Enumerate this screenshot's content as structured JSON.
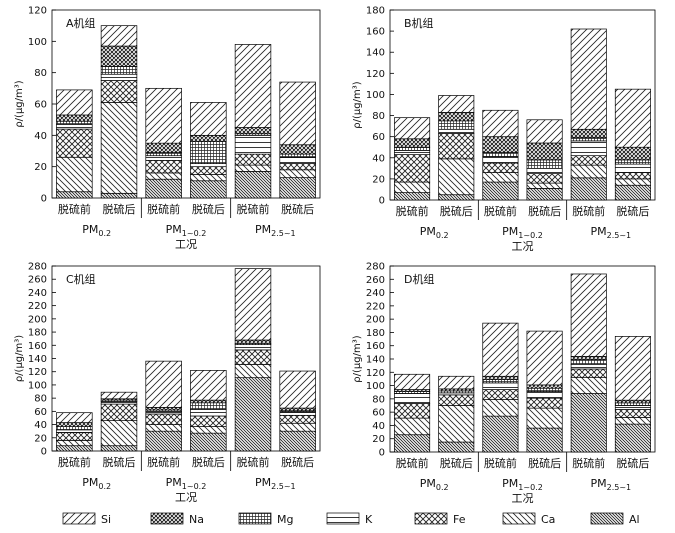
{
  "components": [
    "Si",
    "Na",
    "Mg",
    "K",
    "Fe",
    "Ca",
    "Al"
  ],
  "stack_order_bottom_to_top": [
    "Al",
    "Ca",
    "Fe",
    "K",
    "Mg",
    "Na",
    "Si"
  ],
  "chart_data": [
    {
      "type": "bar",
      "stacked": true,
      "title": "A机组",
      "ylabel": "ρ/(μg/m³)",
      "xlabel": "工况",
      "groups": [
        {
          "prefix": "PM",
          "sub": "0.2"
        },
        {
          "prefix": "PM",
          "sub": "1~0.2"
        },
        {
          "prefix": "PM",
          "sub": "2.5~1"
        }
      ],
      "categories": [
        "脱硫前",
        "脱硫后",
        "脱硫前",
        "脱硫后",
        "脱硫前",
        "脱硫后"
      ],
      "ylim": [
        0,
        120
      ],
      "yticks": [
        0,
        20,
        40,
        60,
        80,
        100,
        120
      ],
      "series": [
        {
          "name": "Al",
          "values": [
            4,
            3,
            12,
            11,
            17,
            13
          ]
        },
        {
          "name": "Ca",
          "values": [
            22,
            58,
            4,
            4,
            4,
            5
          ]
        },
        {
          "name": "Fe",
          "values": [
            18,
            14,
            8,
            5,
            7,
            4
          ]
        },
        {
          "name": "K",
          "values": [
            3,
            4,
            3,
            2,
            12,
            4
          ]
        },
        {
          "name": "Mg",
          "values": [
            2,
            5,
            2,
            14,
            1,
            2
          ]
        },
        {
          "name": "Na",
          "values": [
            4,
            13,
            6,
            4,
            4,
            6
          ]
        },
        {
          "name": "Si",
          "values": [
            16,
            13,
            35,
            21,
            53,
            40
          ]
        }
      ]
    },
    {
      "type": "bar",
      "stacked": true,
      "title": "B机组",
      "ylabel": "ρ/(μg/m³)",
      "xlabel": "工况",
      "groups": [
        {
          "prefix": "PM",
          "sub": "0.2"
        },
        {
          "prefix": "PM",
          "sub": "1~0.2"
        },
        {
          "prefix": "PM",
          "sub": "2.5~1"
        }
      ],
      "categories": [
        "脱硫前",
        "脱硫后",
        "脱硫前",
        "脱硫后",
        "脱硫前",
        "脱硫后"
      ],
      "ylim": [
        0,
        180
      ],
      "yticks": [
        0,
        20,
        40,
        60,
        80,
        100,
        120,
        140,
        160,
        180
      ],
      "series": [
        {
          "name": "Al",
          "values": [
            7,
            5,
            17,
            11,
            21,
            14
          ]
        },
        {
          "name": "Ca",
          "values": [
            10,
            34,
            9,
            5,
            12,
            6
          ]
        },
        {
          "name": "Fe",
          "values": [
            26,
            24,
            9,
            9,
            9,
            6
          ]
        },
        {
          "name": "K",
          "values": [
            4,
            4,
            6,
            5,
            14,
            8
          ]
        },
        {
          "name": "Mg",
          "values": [
            3,
            8,
            4,
            8,
            3,
            4
          ]
        },
        {
          "name": "Na",
          "values": [
            8,
            8,
            15,
            16,
            8,
            12
          ]
        },
        {
          "name": "Si",
          "values": [
            20,
            16,
            25,
            22,
            95,
            55
          ]
        }
      ]
    },
    {
      "type": "bar",
      "stacked": true,
      "title": "C机组",
      "ylabel": "ρ/(μg/m³)",
      "xlabel": "工况",
      "groups": [
        {
          "prefix": "PM",
          "sub": "0.2"
        },
        {
          "prefix": "PM",
          "sub": "1~0.2"
        },
        {
          "prefix": "PM",
          "sub": "2.5~1"
        }
      ],
      "categories": [
        "脱硫前",
        "脱硫后",
        "脱硫前",
        "脱硫后",
        "脱硫前",
        "脱硫后"
      ],
      "ylim": [
        0,
        280
      ],
      "yticks": [
        0,
        20,
        40,
        60,
        80,
        100,
        120,
        140,
        160,
        180,
        200,
        220,
        240,
        260,
        280
      ],
      "series": [
        {
          "name": "Al",
          "values": [
            8,
            8,
            30,
            27,
            111,
            30
          ]
        },
        {
          "name": "Ca",
          "values": [
            8,
            38,
            10,
            10,
            20,
            12
          ]
        },
        {
          "name": "Fe",
          "values": [
            12,
            25,
            16,
            16,
            22,
            12
          ]
        },
        {
          "name": "K",
          "values": [
            4,
            4,
            4,
            10,
            8,
            5
          ]
        },
        {
          "name": "Mg",
          "values": [
            5,
            2,
            2,
            10,
            2,
            2
          ]
        },
        {
          "name": "Na",
          "values": [
            6,
            2,
            4,
            4,
            5,
            4
          ]
        },
        {
          "name": "Si",
          "values": [
            15,
            10,
            70,
            45,
            108,
            56
          ]
        }
      ]
    },
    {
      "type": "bar",
      "stacked": true,
      "title": "D机组",
      "ylabel": "ρ/(μg/m³)",
      "xlabel": "工况",
      "groups": [
        {
          "prefix": "PM",
          "sub": "0.2"
        },
        {
          "prefix": "PM",
          "sub": "1~0.2"
        },
        {
          "prefix": "PM",
          "sub": "2.5~1"
        }
      ],
      "categories": [
        "脱硫前",
        "脱硫后",
        "脱硫前",
        "脱硫后",
        "脱硫前",
        "脱硫后"
      ],
      "ylim": [
        0,
        280
      ],
      "yticks": [
        0,
        20,
        40,
        60,
        80,
        100,
        120,
        140,
        160,
        180,
        200,
        220,
        240,
        260,
        280
      ],
      "series": [
        {
          "name": "Al",
          "values": [
            26,
            15,
            54,
            36,
            88,
            42
          ]
        },
        {
          "name": "Ca",
          "values": [
            25,
            55,
            25,
            30,
            24,
            10
          ]
        },
        {
          "name": "Fe",
          "values": [
            22,
            16,
            15,
            15,
            13,
            12
          ]
        },
        {
          "name": "K",
          "values": [
            15,
            3,
            10,
            10,
            7,
            6
          ]
        },
        {
          "name": "Mg",
          "values": [
            3,
            3,
            5,
            5,
            7,
            4
          ]
        },
        {
          "name": "Na",
          "values": [
            3,
            3,
            5,
            5,
            5,
            4
          ]
        },
        {
          "name": "Si",
          "values": [
            23,
            19,
            80,
            81,
            124,
            96
          ]
        }
      ]
    }
  ]
}
